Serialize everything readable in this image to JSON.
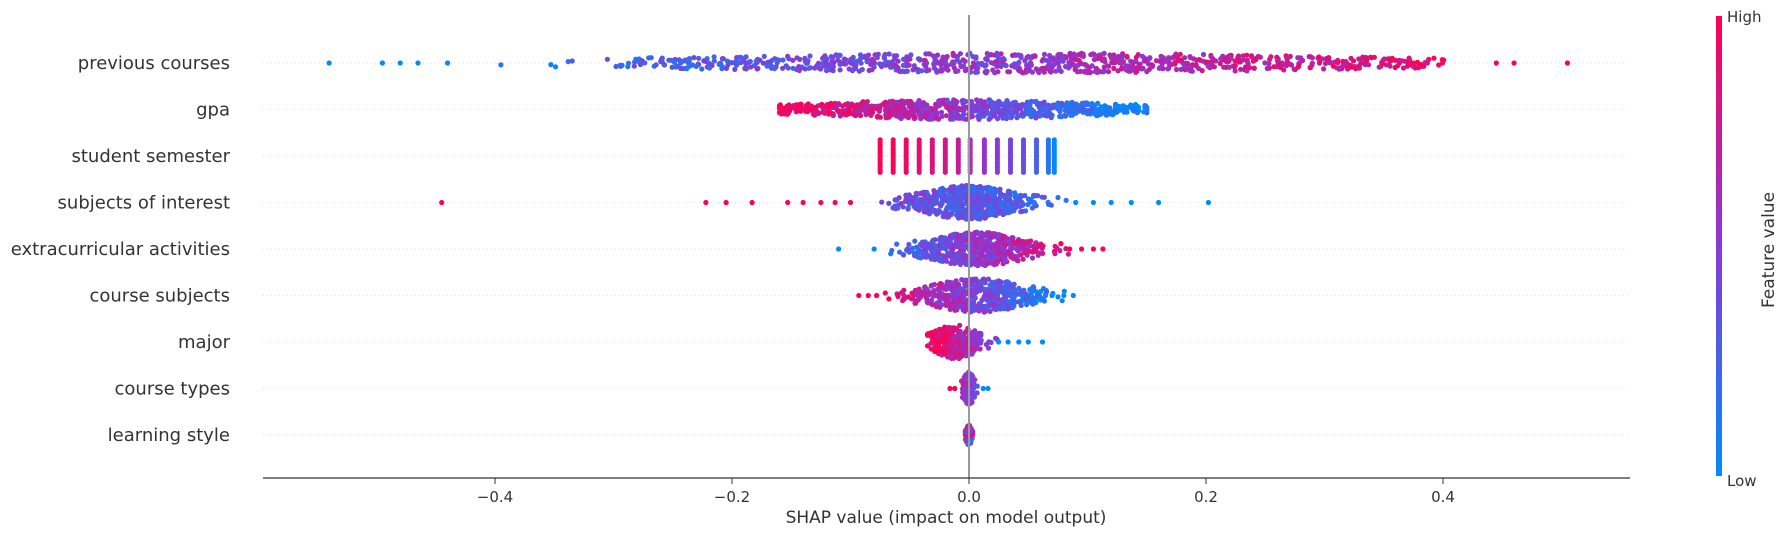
{
  "chart_data": {
    "type": "scatter",
    "subtype": "shap-beeswarm",
    "title": "",
    "xlabel": "SHAP value (impact on model output)",
    "xlim": [
      -0.595,
      0.56
    ],
    "x_ticks": [
      -0.4,
      -0.2,
      0.0,
      0.2,
      0.4
    ],
    "x_tick_labels": [
      "−0.4",
      "−0.2",
      "0.0",
      "0.2",
      "0.4"
    ],
    "zero_line": true,
    "grid": false,
    "colorbar": {
      "label": "Feature value",
      "high_label": "High",
      "low_label": "Low",
      "colors": [
        "#008bfb",
        "#8a39d6",
        "#ff0052"
      ]
    },
    "features": [
      {
        "name": "previous courses",
        "min": -0.54,
        "max": 0.505,
        "count": 900,
        "spread": "wide",
        "color_trend": "low-left-high-right",
        "dense_range": [
          -0.3,
          0.4
        ],
        "outliers": [
          {
            "x": -0.54,
            "v": 0.0
          },
          {
            "x": -0.495,
            "v": 0.0
          },
          {
            "x": -0.48,
            "v": 0.0
          },
          {
            "x": -0.465,
            "v": 0.0
          },
          {
            "x": -0.44,
            "v": 0.05
          },
          {
            "x": 0.445,
            "v": 0.98
          },
          {
            "x": 0.46,
            "v": 0.98
          },
          {
            "x": 0.505,
            "v": 1.0
          }
        ]
      },
      {
        "name": "gpa",
        "min": -0.16,
        "max": 0.15,
        "count": 750,
        "spread": "wide",
        "color_trend": "high-left-low-right",
        "dense_range": [
          -0.16,
          0.15
        ],
        "outliers": []
      },
      {
        "name": "student semester",
        "min": -0.075,
        "max": 0.072,
        "count": 0,
        "spread": "columns",
        "columns": [
          {
            "x": -0.075,
            "v": 1.0
          },
          {
            "x": -0.064,
            "v": 0.96
          },
          {
            "x": -0.053,
            "v": 0.92
          },
          {
            "x": -0.042,
            "v": 0.88
          },
          {
            "x": -0.031,
            "v": 0.84
          },
          {
            "x": -0.02,
            "v": 0.8
          },
          {
            "x": -0.009,
            "v": 0.74
          },
          {
            "x": 0.001,
            "v": 0.62
          },
          {
            "x": 0.013,
            "v": 0.56
          },
          {
            "x": 0.024,
            "v": 0.5
          },
          {
            "x": 0.035,
            "v": 0.44
          },
          {
            "x": 0.046,
            "v": 0.36
          },
          {
            "x": 0.057,
            "v": 0.26
          },
          {
            "x": 0.067,
            "v": 0.14
          },
          {
            "x": 0.072,
            "v": 0.02
          }
        ]
      },
      {
        "name": "subjects of interest",
        "min": -0.445,
        "max": 0.202,
        "count": 600,
        "spread": "center",
        "color_trend": "high-left-low-right",
        "dense_range": [
          -0.05,
          0.05
        ],
        "outliers": [
          {
            "x": -0.445,
            "v": 1.0
          },
          {
            "x": -0.222,
            "v": 1.0
          },
          {
            "x": -0.205,
            "v": 1.0
          },
          {
            "x": -0.183,
            "v": 1.0
          },
          {
            "x": -0.153,
            "v": 1.0
          },
          {
            "x": -0.14,
            "v": 1.0
          },
          {
            "x": -0.125,
            "v": 1.0
          },
          {
            "x": -0.113,
            "v": 1.0
          },
          {
            "x": -0.1,
            "v": 1.0
          },
          {
            "x": 0.09,
            "v": 0.0
          },
          {
            "x": 0.105,
            "v": 0.0
          },
          {
            "x": 0.12,
            "v": 0.0
          },
          {
            "x": 0.137,
            "v": 0.0
          },
          {
            "x": 0.16,
            "v": 0.0
          },
          {
            "x": 0.202,
            "v": 0.0
          }
        ]
      },
      {
        "name": "extracurricular activities",
        "min": -0.11,
        "max": 0.113,
        "count": 550,
        "spread": "center",
        "color_trend": "low-left-high-right",
        "dense_range": [
          -0.045,
          0.06
        ],
        "outliers": [
          {
            "x": -0.11,
            "v": 0.0
          },
          {
            "x": -0.08,
            "v": 0.0
          },
          {
            "x": 0.085,
            "v": 1.0
          },
          {
            "x": 0.095,
            "v": 1.0
          },
          {
            "x": 0.105,
            "v": 1.0
          },
          {
            "x": 0.113,
            "v": 1.0
          }
        ]
      },
      {
        "name": "course subjects",
        "min": -0.093,
        "max": 0.088,
        "count": 500,
        "spread": "center",
        "color_trend": "high-left-low-right",
        "dense_range": [
          -0.045,
          0.06
        ],
        "outliers": [
          {
            "x": -0.093,
            "v": 1.0
          },
          {
            "x": -0.085,
            "v": 1.0
          },
          {
            "x": -0.078,
            "v": 1.0
          },
          {
            "x": -0.06,
            "v": 1.0
          },
          {
            "x": 0.07,
            "v": 0.0
          },
          {
            "x": 0.08,
            "v": 0.0
          },
          {
            "x": 0.088,
            "v": 0.0
          }
        ]
      },
      {
        "name": "major",
        "min": -0.035,
        "max": 0.062,
        "count": 300,
        "spread": "narrow",
        "color_trend": "high-left-low-right",
        "dense_range": [
          -0.035,
          0.012
        ],
        "outliers": [
          {
            "x": 0.025,
            "v": 0.0
          },
          {
            "x": 0.033,
            "v": 0.0
          },
          {
            "x": 0.042,
            "v": 0.0
          },
          {
            "x": 0.05,
            "v": 0.0
          },
          {
            "x": 0.062,
            "v": 0.0
          }
        ]
      },
      {
        "name": "course types",
        "min": -0.016,
        "max": 0.016,
        "count": 160,
        "spread": "narrow",
        "color_trend": "high-left-low-right",
        "dense_range": [
          -0.006,
          0.006
        ],
        "outliers": [
          {
            "x": -0.016,
            "v": 1.0
          },
          {
            "x": -0.012,
            "v": 1.0
          },
          {
            "x": 0.012,
            "v": 0.0
          },
          {
            "x": 0.016,
            "v": 0.0
          }
        ]
      },
      {
        "name": "learning style",
        "min": -0.003,
        "max": 0.003,
        "count": 120,
        "spread": "tight",
        "color_trend": "mixed",
        "dense_range": [
          -0.003,
          0.003
        ],
        "outliers": []
      }
    ]
  }
}
